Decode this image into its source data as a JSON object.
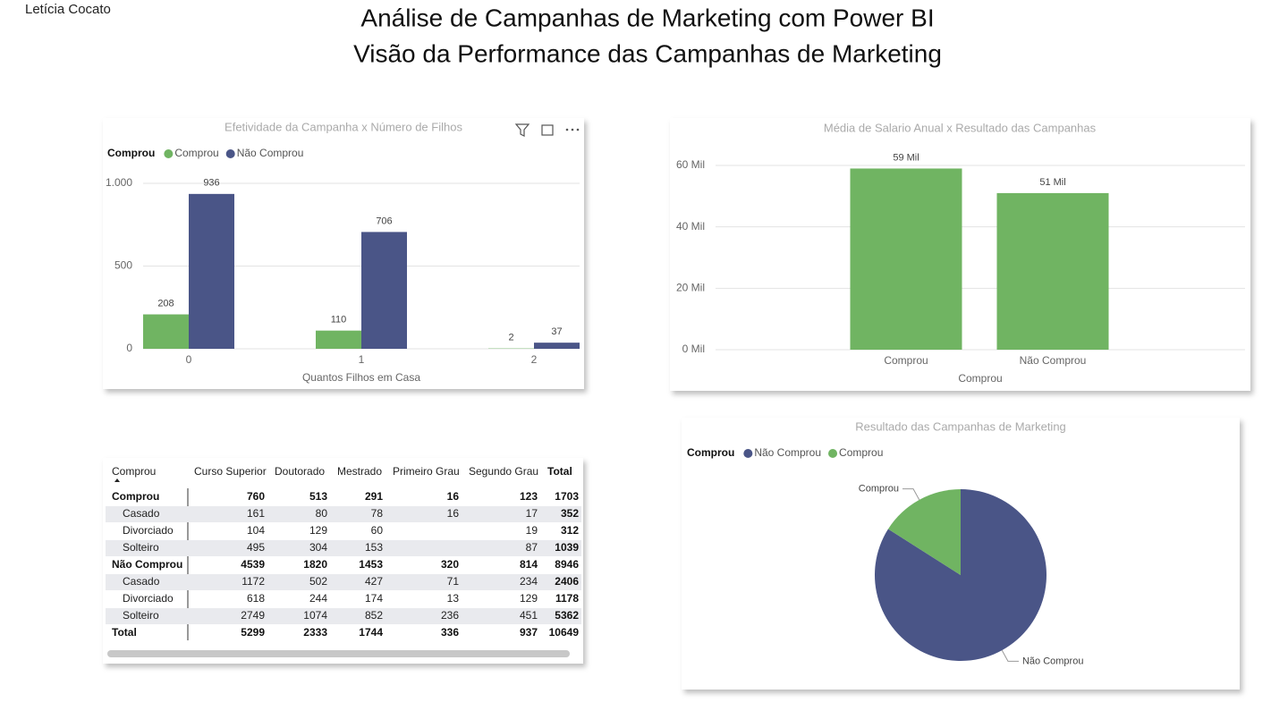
{
  "header": {
    "author": "Letícia Cocato",
    "title": "Análise de Campanhas de Marketing com Power BI",
    "subtitle": "Visão da Performance das Campanhas de Marketing"
  },
  "chart_data": [
    {
      "type": "bar",
      "title": "Efetividade da Campanha x Número de Filhos",
      "legend_title": "Comprou",
      "x_label": "Quantos Filhos em Casa",
      "categories": [
        "0",
        "1",
        "2"
      ],
      "series": [
        {
          "name": "Comprou",
          "color": "#70b462",
          "values": [
            208,
            110,
            2
          ]
        },
        {
          "name": "Não Comprou",
          "color": "#4a5587",
          "values": [
            936,
            706,
            37
          ]
        }
      ],
      "ylim": [
        0,
        1000
      ],
      "yticks": [
        0,
        500,
        {
          "value": 1000,
          "label": "1.000"
        }
      ],
      "grid": true,
      "legend": "top-left"
    },
    {
      "type": "bar",
      "title": "Média de Salario Anual x Resultado das Campanhas",
      "x_label": "Comprou",
      "categories": [
        "Comprou",
        "Não Comprou"
      ],
      "color": "#70b462",
      "values": [
        59000,
        51000
      ],
      "value_labels": [
        "59 Mil",
        "51 Mil"
      ],
      "ylim": [
        0,
        60000
      ],
      "yticks": [
        {
          "value": 0,
          "label": "0 Mil"
        },
        {
          "value": 20000,
          "label": "20 Mil"
        },
        {
          "value": 40000,
          "label": "40 Mil"
        },
        {
          "value": 60000,
          "label": "60 Mil"
        }
      ],
      "grid": true
    },
    {
      "type": "pie",
      "title": "Resultado das Campanhas de Marketing",
      "legend_title": "Comprou",
      "categories": [
        "Não Comprou",
        "Comprou"
      ],
      "values": [
        8946,
        1703
      ],
      "colors": [
        "#4a5587",
        "#70b462"
      ],
      "legend": "top-left"
    }
  ],
  "table": {
    "header": [
      "Comprou",
      "Curso Superior",
      "Doutorado",
      "Mestrado",
      "Primeiro Grau",
      "Segundo Grau",
      "Total"
    ],
    "groups": [
      {
        "label": "Comprou",
        "totals": [
          760,
          513,
          291,
          16,
          123,
          1703
        ],
        "rows": [
          [
            "Casado",
            161,
            80,
            78,
            16,
            17,
            352
          ],
          [
            "Divorciado",
            104,
            129,
            60,
            null,
            19,
            312
          ],
          [
            "Solteiro",
            495,
            304,
            153,
            null,
            87,
            1039
          ]
        ]
      },
      {
        "label": "Não Comprou",
        "totals": [
          4539,
          1820,
          1453,
          320,
          814,
          8946
        ],
        "rows": [
          [
            "Casado",
            1172,
            502,
            427,
            71,
            234,
            2406
          ],
          [
            "Divorciado",
            618,
            244,
            174,
            13,
            129,
            1178
          ],
          [
            "Solteiro",
            2749,
            1074,
            852,
            236,
            451,
            5362
          ]
        ]
      }
    ],
    "total": {
      "label": "Total",
      "values": [
        5299,
        2333,
        1744,
        336,
        937,
        10649
      ]
    }
  }
}
